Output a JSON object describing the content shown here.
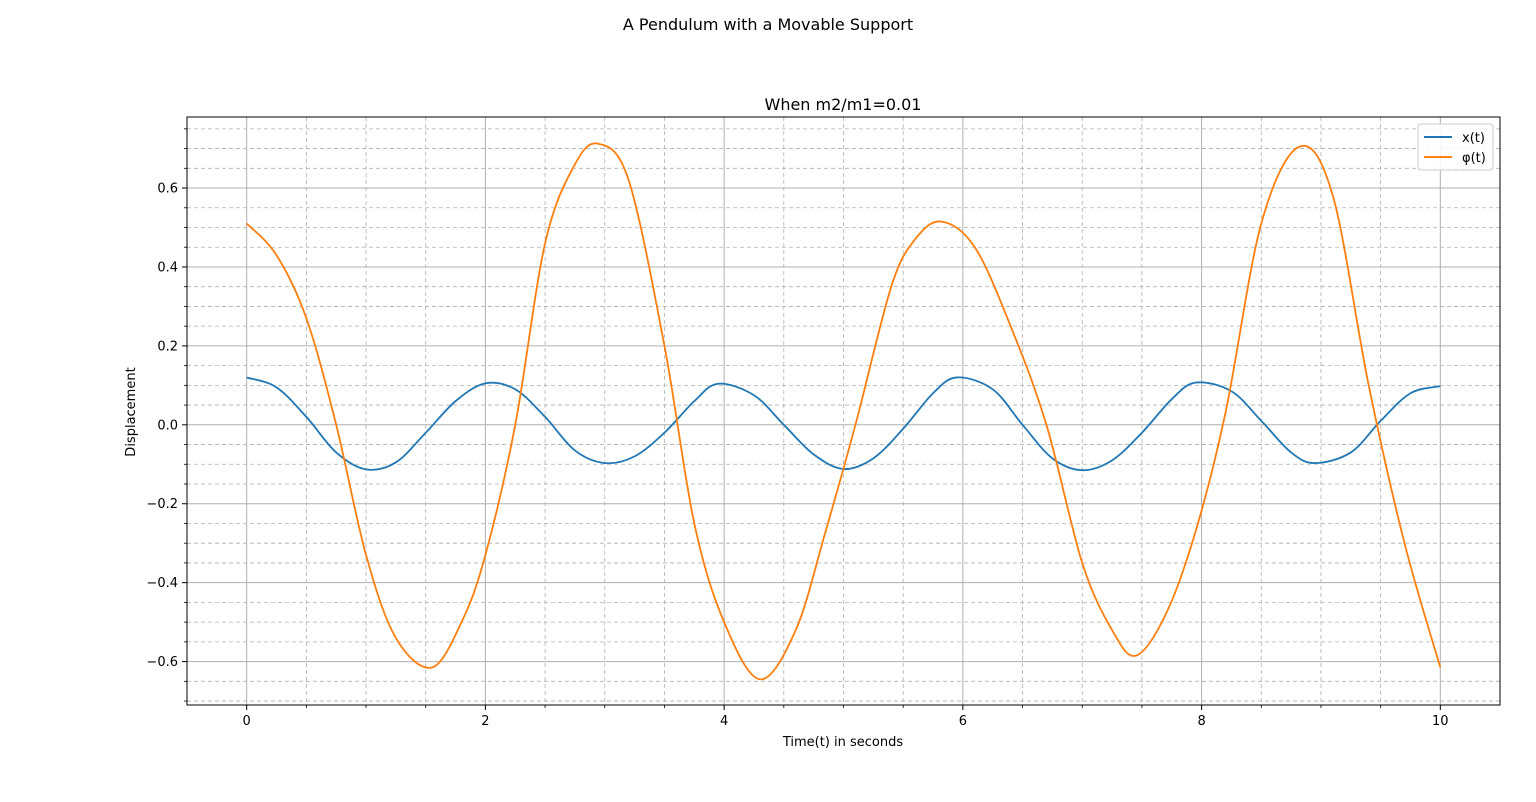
{
  "figure": {
    "suptitle": "A Pendulum with a Movable Support"
  },
  "chart_data": {
    "type": "line",
    "title": "When m2/m1=0.01",
    "xlabel": "Time(t) in seconds",
    "ylabel": "Displacement",
    "xlim": [
      -0.5,
      10.5
    ],
    "ylim": [
      -0.71,
      0.78
    ],
    "xticks": [
      0,
      2,
      4,
      6,
      8,
      10
    ],
    "xtick_labels": [
      "0",
      "2",
      "4",
      "6",
      "8",
      "10"
    ],
    "xminor_ticks": [
      0.5,
      1,
      1.5,
      2.5,
      3,
      3.5,
      4.5,
      5,
      5.5,
      6.5,
      7,
      7.5,
      8.5,
      9,
      9.5
    ],
    "yticks": [
      -0.6,
      -0.4,
      -0.2,
      0.0,
      0.2,
      0.4,
      0.6
    ],
    "ytick_labels": [
      "−0.6",
      "−0.4",
      "−0.2",
      "0.0",
      "0.2",
      "0.4",
      "0.6"
    ],
    "yminor_ticks": [
      -0.7,
      -0.65,
      -0.55,
      -0.5,
      -0.45,
      -0.35,
      -0.3,
      -0.25,
      -0.15,
      -0.1,
      -0.05,
      0.05,
      0.1,
      0.15,
      0.25,
      0.3,
      0.35,
      0.45,
      0.5,
      0.55,
      0.65,
      0.7,
      0.75
    ],
    "grid": {
      "major": "solid",
      "minor": "dashed"
    },
    "legend": "top-right",
    "series": [
      {
        "name": "x(t)",
        "color": "#1f77b4",
        "x": [
          0,
          0.25,
          0.5,
          0.75,
          1.0,
          1.25,
          1.5,
          1.75,
          2.0,
          2.25,
          2.5,
          2.75,
          3.0,
          3.25,
          3.5,
          3.75,
          3.95,
          4.25,
          4.5,
          4.75,
          5.0,
          5.25,
          5.5,
          5.75,
          5.95,
          6.25,
          6.5,
          6.75,
          7.0,
          7.25,
          7.5,
          7.75,
          7.95,
          8.25,
          8.5,
          8.75,
          8.95,
          9.25,
          9.5,
          9.75,
          10.0
        ],
        "y": [
          0.12,
          0.095,
          0.02,
          -0.07,
          -0.113,
          -0.095,
          -0.02,
          0.06,
          0.105,
          0.09,
          0.02,
          -0.065,
          -0.097,
          -0.08,
          -0.02,
          0.06,
          0.104,
          0.075,
          0.0,
          -0.075,
          -0.112,
          -0.085,
          -0.01,
          0.08,
          0.12,
          0.09,
          0.0,
          -0.085,
          -0.115,
          -0.09,
          -0.02,
          0.065,
          0.107,
          0.085,
          0.01,
          -0.07,
          -0.097,
          -0.07,
          0.01,
          0.08,
          0.098
        ]
      },
      {
        "name": "φ(t)",
        "color": "#ff7f0e",
        "x": [
          0,
          0.25,
          0.5,
          0.75,
          1.0,
          1.25,
          1.55,
          1.8,
          2.0,
          2.25,
          2.5,
          2.75,
          2.95,
          3.2,
          3.5,
          3.75,
          4.0,
          4.3,
          4.6,
          4.85,
          5.1,
          5.4,
          5.6,
          5.82,
          6.1,
          6.4,
          6.7,
          7.0,
          7.25,
          7.45,
          7.7,
          7.95,
          8.2,
          8.5,
          8.82,
          9.1,
          9.4,
          9.7,
          10.0
        ],
        "y": [
          0.51,
          0.43,
          0.27,
          0.0,
          -0.33,
          -0.54,
          -0.615,
          -0.5,
          -0.33,
          0.0,
          0.46,
          0.66,
          0.712,
          0.62,
          0.2,
          -0.25,
          -0.5,
          -0.645,
          -0.52,
          -0.27,
          0.0,
          0.35,
          0.47,
          0.515,
          0.45,
          0.25,
          0.0,
          -0.35,
          -0.52,
          -0.585,
          -0.48,
          -0.27,
          0.03,
          0.51,
          0.705,
          0.58,
          0.1,
          -0.3,
          -0.615
        ]
      }
    ]
  }
}
